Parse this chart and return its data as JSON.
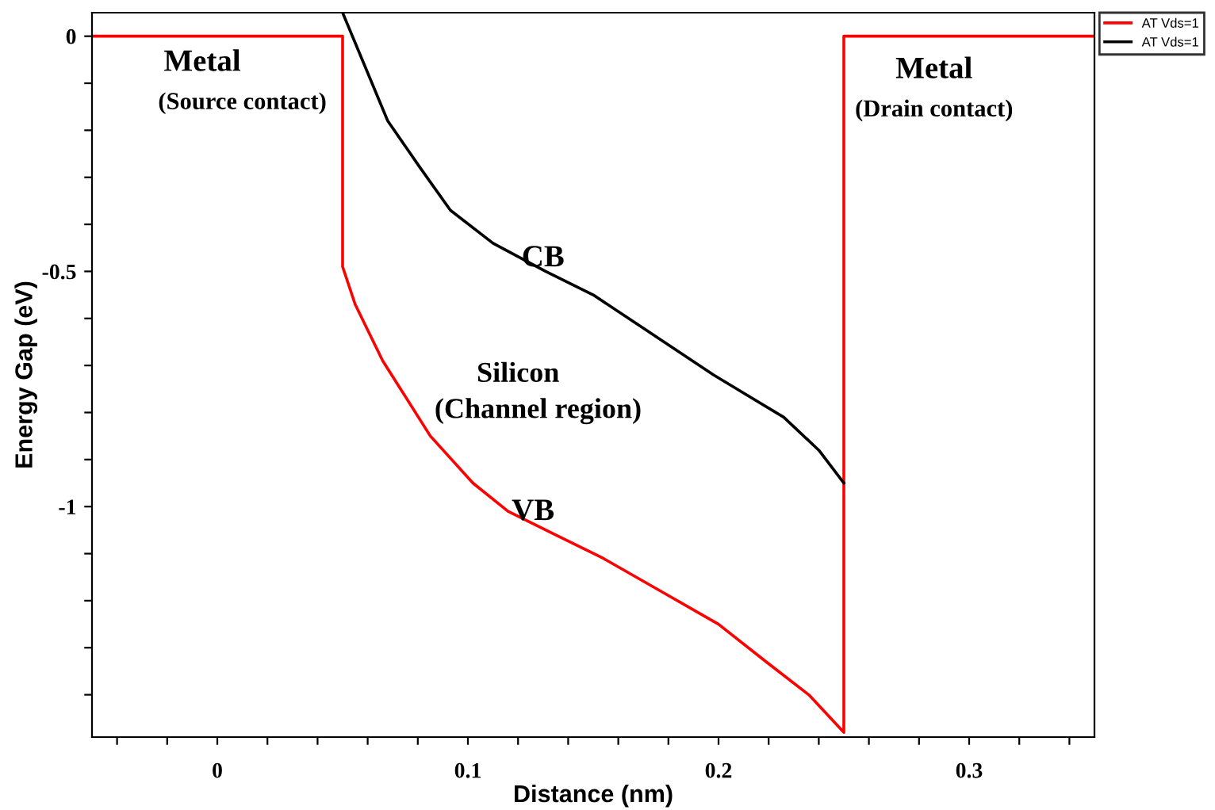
{
  "chart_data": {
    "type": "line",
    "xlabel": "Distance (nm)",
    "ylabel": "Energy Gap (eV)",
    "series": [
      {
        "name": "AT Vds=1",
        "color": "#ff0000",
        "x": [
          -0.05,
          0.05,
          0.05,
          0.055,
          0.066,
          0.085,
          0.102,
          0.116,
          0.135,
          0.154,
          0.177,
          0.2,
          0.219,
          0.236,
          0.25,
          0.25,
          0.35
        ],
        "values": [
          0,
          0,
          -0.49,
          -0.57,
          -0.69,
          -0.85,
          -0.95,
          -1.01,
          -1.06,
          -1.11,
          -1.18,
          -1.25,
          -1.33,
          -1.4,
          -1.48,
          0,
          0
        ]
      },
      {
        "name": "AT Vds=1",
        "color": "#000000",
        "x": [
          0.05,
          0.068,
          0.081,
          0.093,
          0.11,
          0.131,
          0.15,
          0.167,
          0.198,
          0.226,
          0.24,
          0.25
        ],
        "values": [
          0.05,
          -0.18,
          -0.28,
          -0.37,
          -0.44,
          -0.5,
          -0.55,
          -0.61,
          -0.72,
          -0.81,
          -0.88,
          -0.95
        ]
      }
    ],
    "xlim": [
      -0.05,
      0.35
    ],
    "ylim": [
      -1.49,
      0.05
    ],
    "xticks": [
      {
        "value": -0.04,
        "label": null
      },
      {
        "value": -0.02,
        "label": null
      },
      0,
      {
        "value": 0.02,
        "label": null
      },
      {
        "value": 0.04,
        "label": null
      },
      {
        "value": 0.06,
        "label": null
      },
      {
        "value": 0.08,
        "label": null
      },
      0.1,
      {
        "value": 0.12,
        "label": null
      },
      {
        "value": 0.14,
        "label": null
      },
      {
        "value": 0.16,
        "label": null
      },
      {
        "value": 0.18,
        "label": null
      },
      0.2,
      {
        "value": 0.22,
        "label": null
      },
      {
        "value": 0.24,
        "label": null
      },
      {
        "value": 0.26,
        "label": null
      },
      {
        "value": 0.28,
        "label": null
      },
      0.3,
      {
        "value": 0.32,
        "label": null
      },
      {
        "value": 0.34,
        "label": null
      }
    ],
    "yticks": [
      0,
      {
        "value": -0.1,
        "label": null
      },
      {
        "value": -0.2,
        "label": null
      },
      {
        "value": -0.3,
        "label": null
      },
      {
        "value": -0.4,
        "label": null
      },
      -0.5,
      {
        "value": -0.6,
        "label": null
      },
      {
        "value": -0.7,
        "label": null
      },
      {
        "value": -0.8,
        "label": null
      },
      {
        "value": -0.9,
        "label": null
      },
      -1,
      {
        "value": -1.1,
        "label": null
      },
      {
        "value": -1.2,
        "label": null
      },
      {
        "value": -1.3,
        "label": null
      },
      {
        "value": -1.4,
        "label": null
      }
    ],
    "annotations": [
      "Metal",
      "(Source contact)",
      "Metal",
      "(Drain contact)",
      "CB",
      "Silicon",
      "(Channel region)",
      "VB"
    ],
    "grid": false,
    "legend": "top right",
    "marker": "none",
    "line_style": "solid"
  }
}
